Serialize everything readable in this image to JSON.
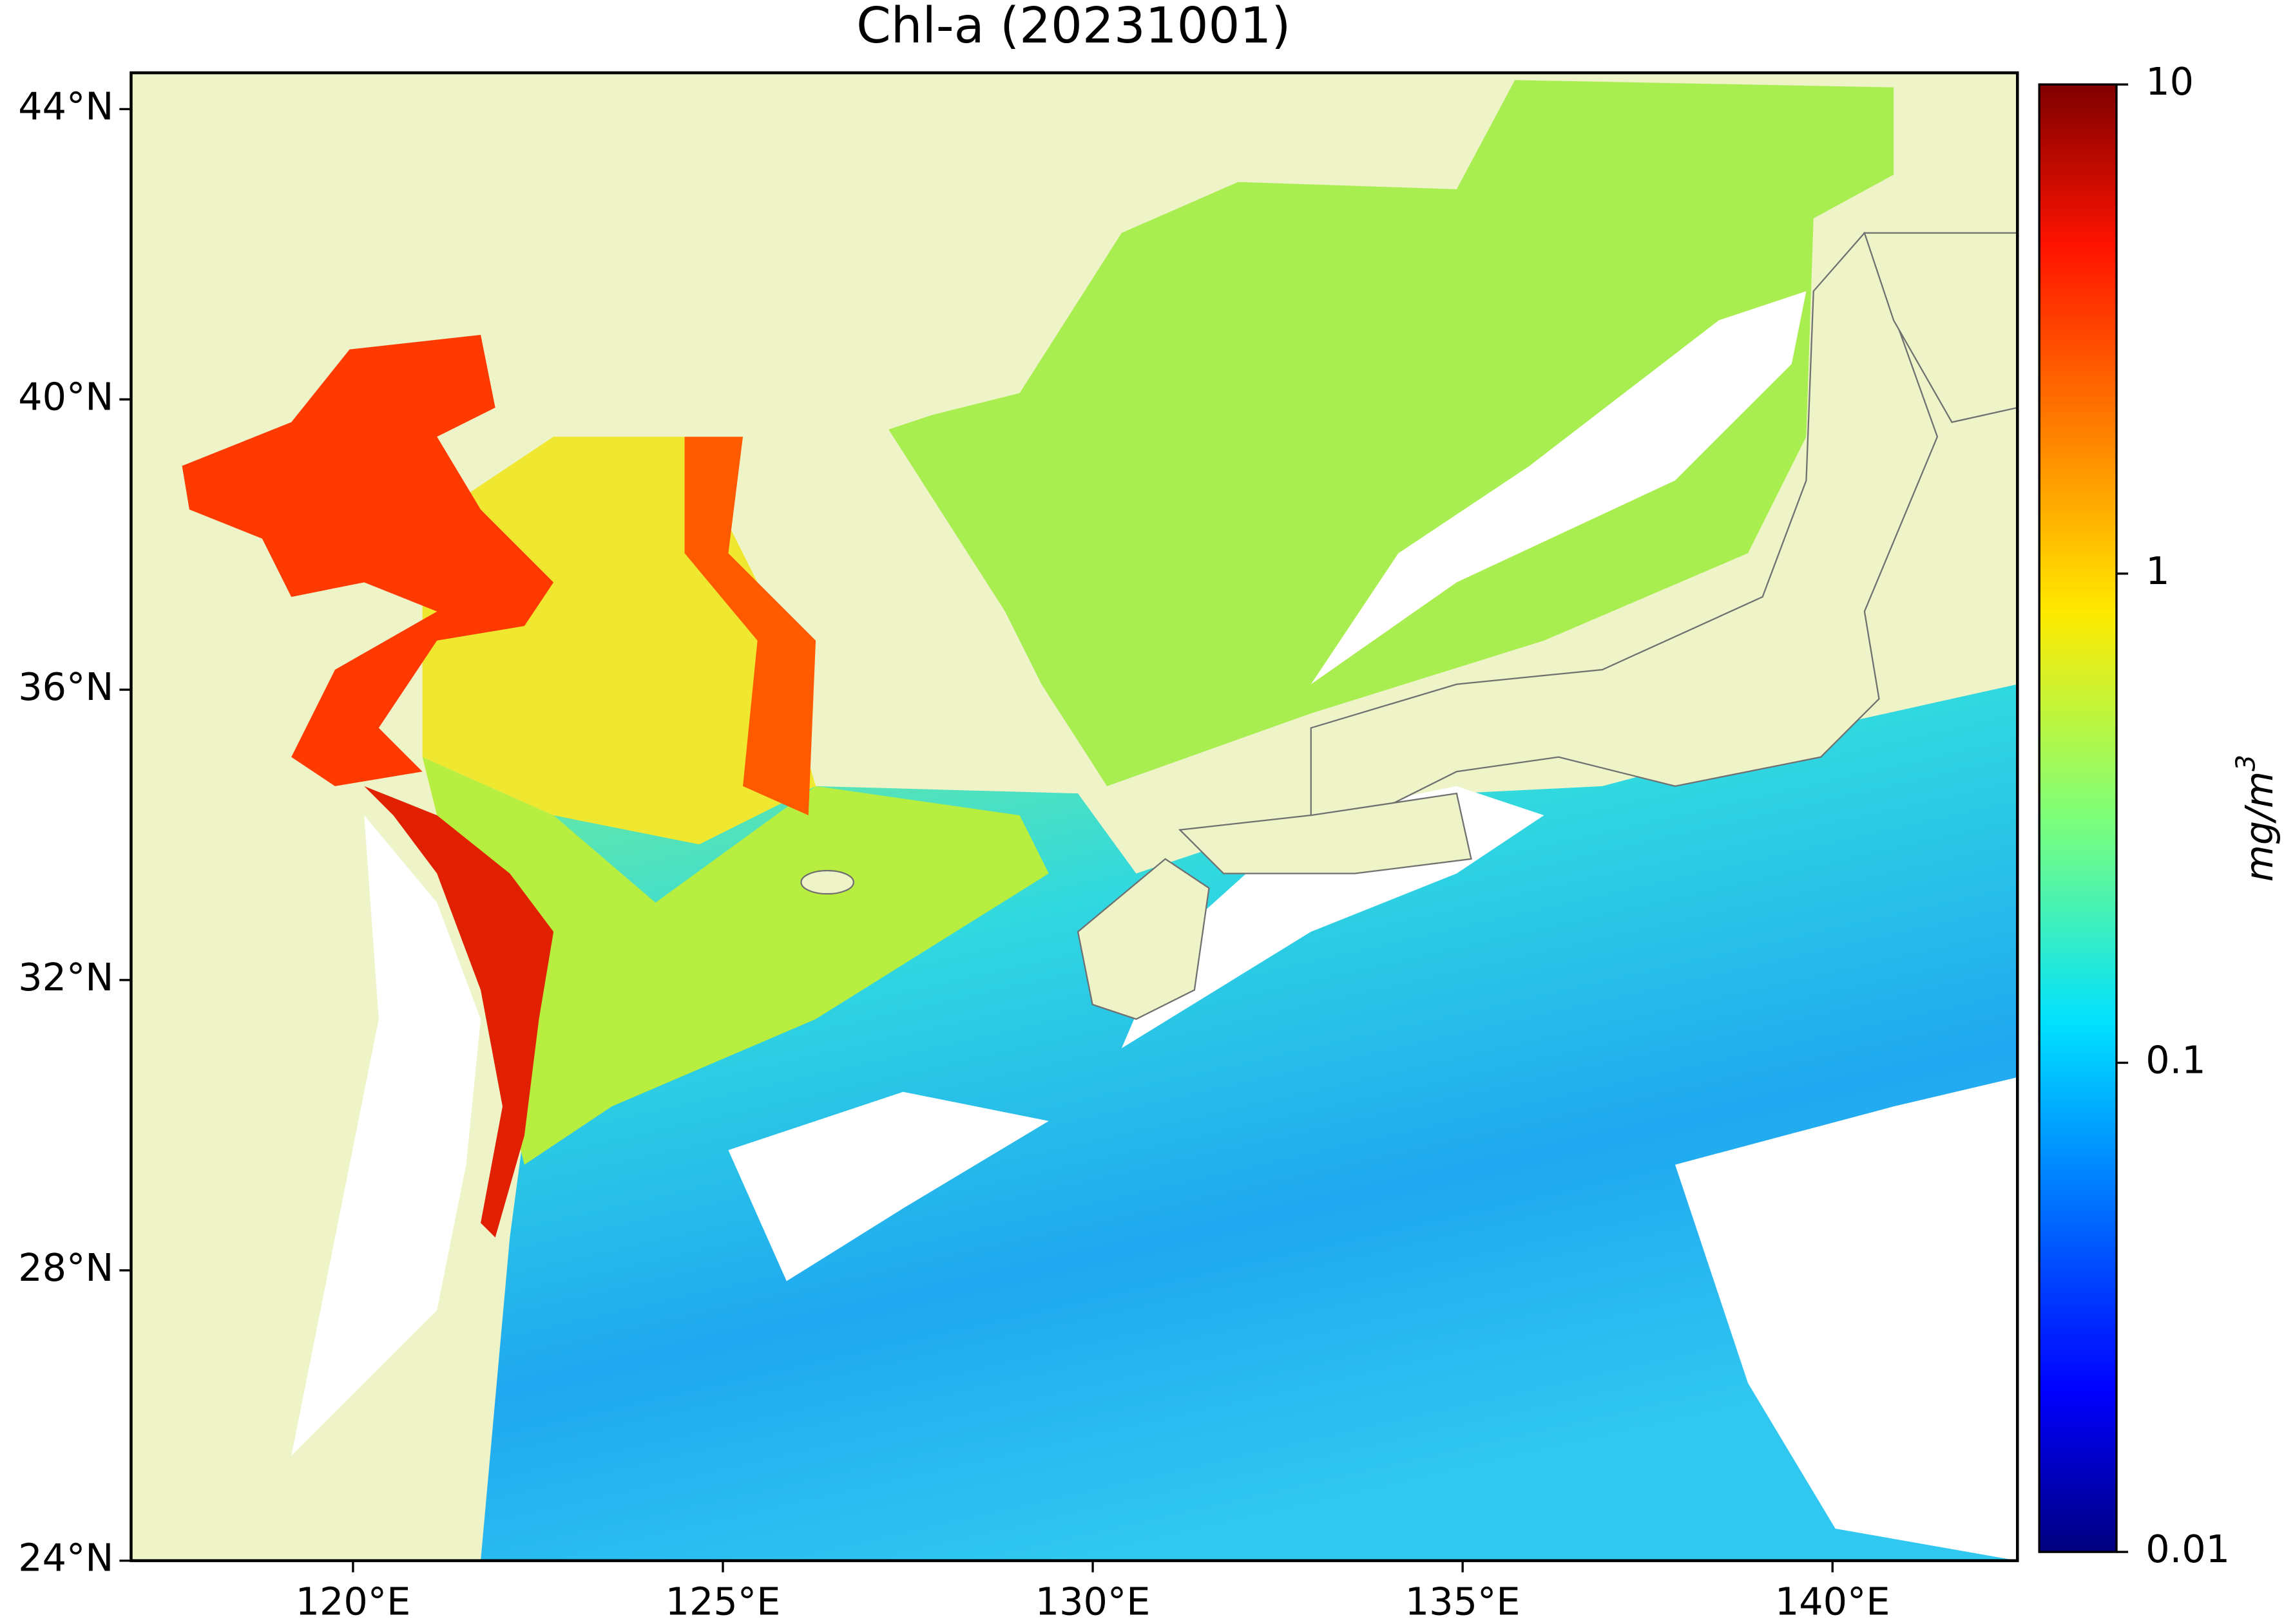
{
  "chart_data": {
    "type": "map",
    "title": "Chl-a (20231001)",
    "xlim": [
      117,
      142.5
    ],
    "ylim": [
      24,
      44.5
    ],
    "xticks": [
      {
        "value": 120,
        "label": "120°E"
      },
      {
        "value": 125,
        "label": "125°E"
      },
      {
        "value": 130,
        "label": "130°E"
      },
      {
        "value": 135,
        "label": "135°E"
      },
      {
        "value": 140,
        "label": "140°E"
      }
    ],
    "yticks": [
      {
        "value": 24,
        "label": "24°N"
      },
      {
        "value": 28,
        "label": "28°N"
      },
      {
        "value": 32,
        "label": "32°N"
      },
      {
        "value": 36,
        "label": "36°N"
      },
      {
        "value": 40,
        "label": "40°N"
      },
      {
        "value": 44,
        "label": "44°N"
      }
    ],
    "colorbar": {
      "lim": [
        0.01,
        10
      ],
      "ticks": [
        0.01,
        0.1,
        1,
        10
      ],
      "log_scale": true,
      "colormap": "jet",
      "label": {
        "unit": "mg/m",
        "exponent": "3"
      }
    }
  }
}
